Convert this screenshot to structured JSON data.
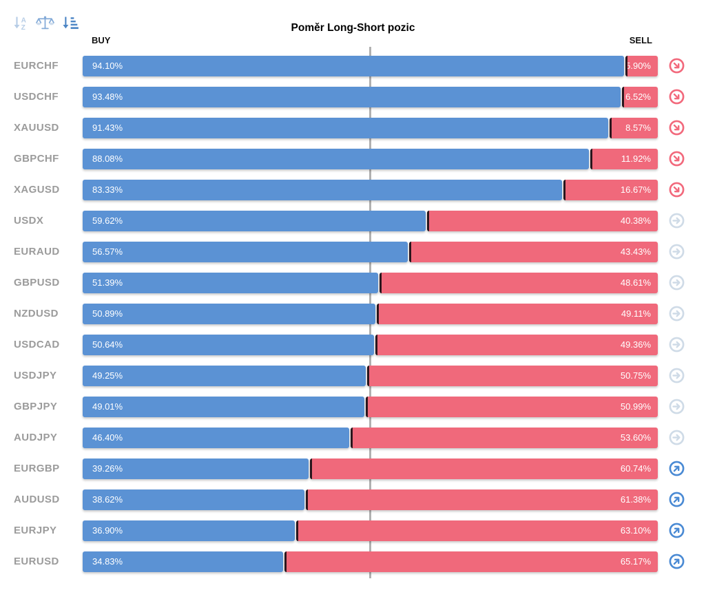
{
  "title": "Poměr Long-Short pozic",
  "headers": {
    "buy": "BUY",
    "sell": "SELL"
  },
  "toolbar": {
    "icons": [
      {
        "name": "sort-alpha-icon"
      },
      {
        "name": "balance-scale-icon"
      },
      {
        "name": "sort-amount-icon"
      }
    ]
  },
  "colors": {
    "buy_bar": "#5b92d4",
    "sell_bar": "#f0697b",
    "divider": "#2a161d",
    "center_line": "#b1b1b1",
    "pair_label": "#9b9b9b",
    "signal_down": "#f2697c",
    "signal_neutral": "#cfdbe7",
    "signal_up": "#4a8ad4",
    "toolbar_sort_alpha": "#b7cde6",
    "toolbar_balance": "#84abd8",
    "toolbar_balance_light": "#cfdded",
    "toolbar_sort_amount": "#4d86c5"
  },
  "chart_data": {
    "type": "bar",
    "subtype": "horizontal-stacked-percentage",
    "title": "Poměr Long-Short pozic",
    "legend": [
      "BUY",
      "SELL"
    ],
    "xlim": [
      0,
      100
    ],
    "center_line_at": 50,
    "rows": [
      {
        "pair": "EURCHF",
        "buy": 94.1,
        "sell": 5.9,
        "buy_label": "94.10%",
        "sell_label": "5.90%",
        "signal": "down"
      },
      {
        "pair": "USDCHF",
        "buy": 93.48,
        "sell": 6.52,
        "buy_label": "93.48%",
        "sell_label": "6.52%",
        "signal": "down"
      },
      {
        "pair": "XAUUSD",
        "buy": 91.43,
        "sell": 8.57,
        "buy_label": "91.43%",
        "sell_label": "8.57%",
        "signal": "down"
      },
      {
        "pair": "GBPCHF",
        "buy": 88.08,
        "sell": 11.92,
        "buy_label": "88.08%",
        "sell_label": "11.92%",
        "signal": "down"
      },
      {
        "pair": "XAGUSD",
        "buy": 83.33,
        "sell": 16.67,
        "buy_label": "83.33%",
        "sell_label": "16.67%",
        "signal": "down"
      },
      {
        "pair": "USDX",
        "buy": 59.62,
        "sell": 40.38,
        "buy_label": "59.62%",
        "sell_label": "40.38%",
        "signal": "neutral"
      },
      {
        "pair": "EURAUD",
        "buy": 56.57,
        "sell": 43.43,
        "buy_label": "56.57%",
        "sell_label": "43.43%",
        "signal": "neutral"
      },
      {
        "pair": "GBPUSD",
        "buy": 51.39,
        "sell": 48.61,
        "buy_label": "51.39%",
        "sell_label": "48.61%",
        "signal": "neutral"
      },
      {
        "pair": "NZDUSD",
        "buy": 50.89,
        "sell": 49.11,
        "buy_label": "50.89%",
        "sell_label": "49.11%",
        "signal": "neutral"
      },
      {
        "pair": "USDCAD",
        "buy": 50.64,
        "sell": 49.36,
        "buy_label": "50.64%",
        "sell_label": "49.36%",
        "signal": "neutral"
      },
      {
        "pair": "USDJPY",
        "buy": 49.25,
        "sell": 50.75,
        "buy_label": "49.25%",
        "sell_label": "50.75%",
        "signal": "neutral"
      },
      {
        "pair": "GBPJPY",
        "buy": 49.01,
        "sell": 50.99,
        "buy_label": "49.01%",
        "sell_label": "50.99%",
        "signal": "neutral"
      },
      {
        "pair": "AUDJPY",
        "buy": 46.4,
        "sell": 53.6,
        "buy_label": "46.40%",
        "sell_label": "53.60%",
        "signal": "neutral"
      },
      {
        "pair": "EURGBP",
        "buy": 39.26,
        "sell": 60.74,
        "buy_label": "39.26%",
        "sell_label": "60.74%",
        "signal": "up"
      },
      {
        "pair": "AUDUSD",
        "buy": 38.62,
        "sell": 61.38,
        "buy_label": "38.62%",
        "sell_label": "61.38%",
        "signal": "up"
      },
      {
        "pair": "EURJPY",
        "buy": 36.9,
        "sell": 63.1,
        "buy_label": "36.90%",
        "sell_label": "63.10%",
        "signal": "up"
      },
      {
        "pair": "EURUSD",
        "buy": 34.83,
        "sell": 65.17,
        "buy_label": "34.83%",
        "sell_label": "65.17%",
        "signal": "up"
      }
    ]
  }
}
